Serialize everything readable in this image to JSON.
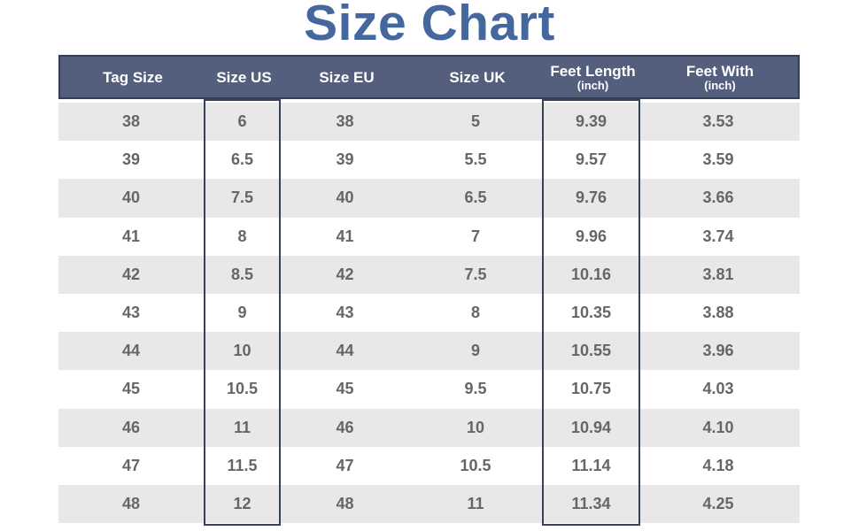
{
  "title": "Size Chart",
  "colors": {
    "title_text": "#44689e",
    "header_bg": "#545f7d",
    "header_text": "#ffffff",
    "header_border": "#333f58",
    "row_alt_bg": "#e8e8e8",
    "row_bg": "#ffffff",
    "cell_text": "#666666",
    "highlight_box_border": "#36415c"
  },
  "chart_data": {
    "type": "table",
    "title": "Size Chart",
    "legend_position": "none",
    "grid": "striped-rows",
    "columns": [
      {
        "label": "Tag Size",
        "sublabel": "",
        "highlighted": false
      },
      {
        "label": "Size US",
        "sublabel": "",
        "highlighted": true
      },
      {
        "label": "Size EU",
        "sublabel": "",
        "highlighted": false
      },
      {
        "label": "Size UK",
        "sublabel": "",
        "highlighted": false
      },
      {
        "label": "Feet Length",
        "sublabel": "(inch)",
        "highlighted": true
      },
      {
        "label": "Feet With",
        "sublabel": "(inch)",
        "highlighted": true
      }
    ],
    "rows": [
      [
        "38",
        "6",
        "38",
        "5",
        "9.39",
        "3.53"
      ],
      [
        "39",
        "6.5",
        "39",
        "5.5",
        "9.57",
        "3.59"
      ],
      [
        "40",
        "7.5",
        "40",
        "6.5",
        "9.76",
        "3.66"
      ],
      [
        "41",
        "8",
        "41",
        "7",
        "9.96",
        "3.74"
      ],
      [
        "42",
        "8.5",
        "42",
        "7.5",
        "10.16",
        "3.81"
      ],
      [
        "43",
        "9",
        "43",
        "8",
        "10.35",
        "3.88"
      ],
      [
        "44",
        "10",
        "44",
        "9",
        "10.55",
        "3.96"
      ],
      [
        "45",
        "10.5",
        "45",
        "9.5",
        "10.75",
        "4.03"
      ],
      [
        "46",
        "11",
        "46",
        "10",
        "10.94",
        "4.10"
      ],
      [
        "47",
        "11.5",
        "47",
        "10.5",
        "11.14",
        "4.18"
      ],
      [
        "48",
        "12",
        "48",
        "11",
        "11.34",
        "4.25"
      ]
    ]
  }
}
